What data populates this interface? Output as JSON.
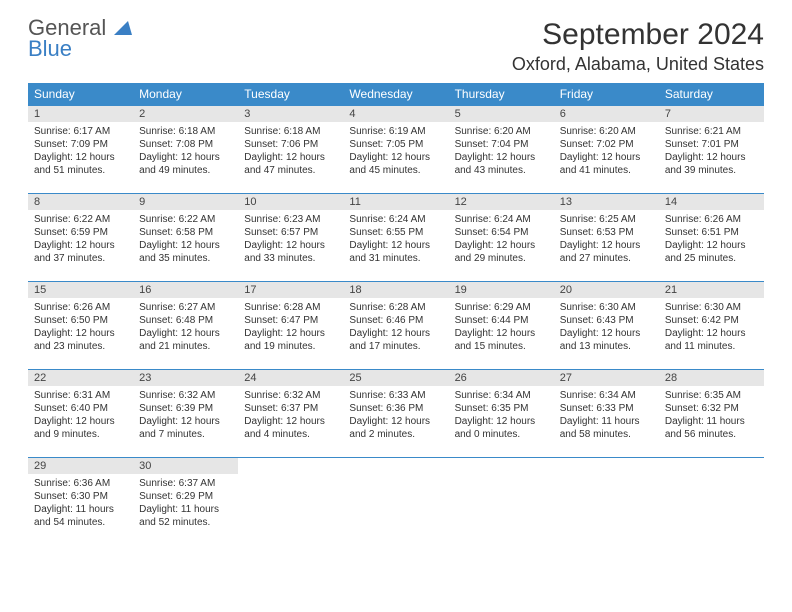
{
  "logo": {
    "line1": "General",
    "line2": "Blue"
  },
  "title": "September 2024",
  "location": "Oxford, Alabama, United States",
  "colors": {
    "header_bg": "#3a8ac9",
    "header_text": "#ffffff",
    "daynum_bg": "#e6e6e6",
    "border": "#3a8ac9",
    "logo_gray": "#555555",
    "logo_blue": "#3a7fc4"
  },
  "fonts": {
    "family": "Arial",
    "title_pt": 30,
    "location_pt": 18,
    "header_pt": 12,
    "daynum_pt": 11,
    "body_pt": 10
  },
  "days_of_week": [
    "Sunday",
    "Monday",
    "Tuesday",
    "Wednesday",
    "Thursday",
    "Friday",
    "Saturday"
  ],
  "cells": [
    {
      "day": 1,
      "sunrise": "6:17 AM",
      "sunset": "7:09 PM",
      "daylight": "12 hours and 51 minutes."
    },
    {
      "day": 2,
      "sunrise": "6:18 AM",
      "sunset": "7:08 PM",
      "daylight": "12 hours and 49 minutes."
    },
    {
      "day": 3,
      "sunrise": "6:18 AM",
      "sunset": "7:06 PM",
      "daylight": "12 hours and 47 minutes."
    },
    {
      "day": 4,
      "sunrise": "6:19 AM",
      "sunset": "7:05 PM",
      "daylight": "12 hours and 45 minutes."
    },
    {
      "day": 5,
      "sunrise": "6:20 AM",
      "sunset": "7:04 PM",
      "daylight": "12 hours and 43 minutes."
    },
    {
      "day": 6,
      "sunrise": "6:20 AM",
      "sunset": "7:02 PM",
      "daylight": "12 hours and 41 minutes."
    },
    {
      "day": 7,
      "sunrise": "6:21 AM",
      "sunset": "7:01 PM",
      "daylight": "12 hours and 39 minutes."
    },
    {
      "day": 8,
      "sunrise": "6:22 AM",
      "sunset": "6:59 PM",
      "daylight": "12 hours and 37 minutes."
    },
    {
      "day": 9,
      "sunrise": "6:22 AM",
      "sunset": "6:58 PM",
      "daylight": "12 hours and 35 minutes."
    },
    {
      "day": 10,
      "sunrise": "6:23 AM",
      "sunset": "6:57 PM",
      "daylight": "12 hours and 33 minutes."
    },
    {
      "day": 11,
      "sunrise": "6:24 AM",
      "sunset": "6:55 PM",
      "daylight": "12 hours and 31 minutes."
    },
    {
      "day": 12,
      "sunrise": "6:24 AM",
      "sunset": "6:54 PM",
      "daylight": "12 hours and 29 minutes."
    },
    {
      "day": 13,
      "sunrise": "6:25 AM",
      "sunset": "6:53 PM",
      "daylight": "12 hours and 27 minutes."
    },
    {
      "day": 14,
      "sunrise": "6:26 AM",
      "sunset": "6:51 PM",
      "daylight": "12 hours and 25 minutes."
    },
    {
      "day": 15,
      "sunrise": "6:26 AM",
      "sunset": "6:50 PM",
      "daylight": "12 hours and 23 minutes."
    },
    {
      "day": 16,
      "sunrise": "6:27 AM",
      "sunset": "6:48 PM",
      "daylight": "12 hours and 21 minutes."
    },
    {
      "day": 17,
      "sunrise": "6:28 AM",
      "sunset": "6:47 PM",
      "daylight": "12 hours and 19 minutes."
    },
    {
      "day": 18,
      "sunrise": "6:28 AM",
      "sunset": "6:46 PM",
      "daylight": "12 hours and 17 minutes."
    },
    {
      "day": 19,
      "sunrise": "6:29 AM",
      "sunset": "6:44 PM",
      "daylight": "12 hours and 15 minutes."
    },
    {
      "day": 20,
      "sunrise": "6:30 AM",
      "sunset": "6:43 PM",
      "daylight": "12 hours and 13 minutes."
    },
    {
      "day": 21,
      "sunrise": "6:30 AM",
      "sunset": "6:42 PM",
      "daylight": "12 hours and 11 minutes."
    },
    {
      "day": 22,
      "sunrise": "6:31 AM",
      "sunset": "6:40 PM",
      "daylight": "12 hours and 9 minutes."
    },
    {
      "day": 23,
      "sunrise": "6:32 AM",
      "sunset": "6:39 PM",
      "daylight": "12 hours and 7 minutes."
    },
    {
      "day": 24,
      "sunrise": "6:32 AM",
      "sunset": "6:37 PM",
      "daylight": "12 hours and 4 minutes."
    },
    {
      "day": 25,
      "sunrise": "6:33 AM",
      "sunset": "6:36 PM",
      "daylight": "12 hours and 2 minutes."
    },
    {
      "day": 26,
      "sunrise": "6:34 AM",
      "sunset": "6:35 PM",
      "daylight": "12 hours and 0 minutes."
    },
    {
      "day": 27,
      "sunrise": "6:34 AM",
      "sunset": "6:33 PM",
      "daylight": "11 hours and 58 minutes."
    },
    {
      "day": 28,
      "sunrise": "6:35 AM",
      "sunset": "6:32 PM",
      "daylight": "11 hours and 56 minutes."
    },
    {
      "day": 29,
      "sunrise": "6:36 AM",
      "sunset": "6:30 PM",
      "daylight": "11 hours and 54 minutes."
    },
    {
      "day": 30,
      "sunrise": "6:37 AM",
      "sunset": "6:29 PM",
      "daylight": "11 hours and 52 minutes."
    }
  ],
  "labels": {
    "sunrise": "Sunrise:",
    "sunset": "Sunset:",
    "daylight": "Daylight:"
  },
  "layout": {
    "start_weekday": 0,
    "columns": 7,
    "rows": 5
  }
}
